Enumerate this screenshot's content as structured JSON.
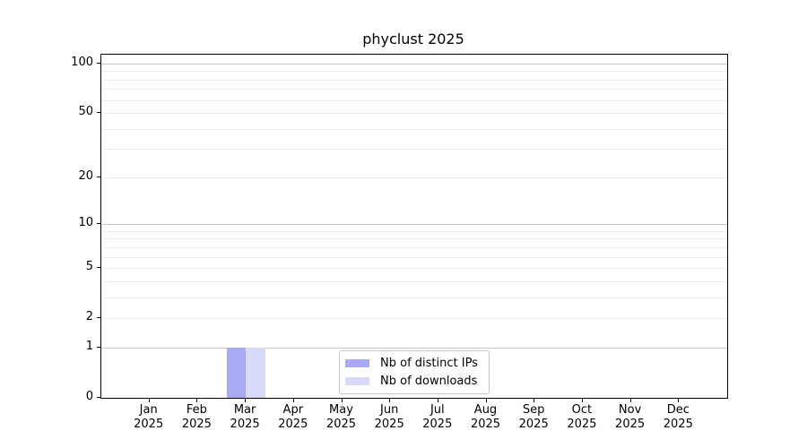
{
  "chart_data": {
    "type": "bar",
    "title": "phyclust 2025",
    "xlabel": "",
    "ylabel": "",
    "categories": [
      "Jan",
      "Feb",
      "Mar",
      "Apr",
      "May",
      "Jun",
      "Jul",
      "Aug",
      "Sep",
      "Oct",
      "Nov",
      "Dec"
    ],
    "year": "2025",
    "series": [
      {
        "name": "Nb of distinct IPs",
        "color": "#a9aaf6",
        "values": [
          0,
          0,
          1,
          0,
          0,
          0,
          0,
          0,
          0,
          0,
          0,
          0
        ]
      },
      {
        "name": "Nb of downloads",
        "color": "#d8d9f8",
        "values": [
          0,
          0,
          1,
          0,
          0,
          0,
          0,
          0,
          0,
          0,
          0,
          0
        ]
      }
    ],
    "yscale": "log1p",
    "ylim": [
      0,
      113
    ],
    "y_major_ticks": [
      0,
      1,
      2,
      5,
      10,
      20,
      50,
      100
    ],
    "y_minor_gridlines": [
      3,
      4,
      6,
      7,
      8,
      9,
      30,
      40,
      60,
      70,
      80,
      90
    ],
    "y_strong_gridlines": [
      1,
      10,
      100
    ],
    "grid": true,
    "legend_position": "lower center"
  },
  "legend": {
    "entries": [
      {
        "label": "Nb of distinct IPs",
        "color": "#a9aaf6"
      },
      {
        "label": "Nb of downloads",
        "color": "#d8d9f8"
      }
    ]
  },
  "colors": {
    "background": "#ffffff",
    "spine": "#000000",
    "grid_strong": "#c6c6c6",
    "grid_faint": "#ededed",
    "text": "#000000",
    "legend_border": "#c8c8c8"
  }
}
